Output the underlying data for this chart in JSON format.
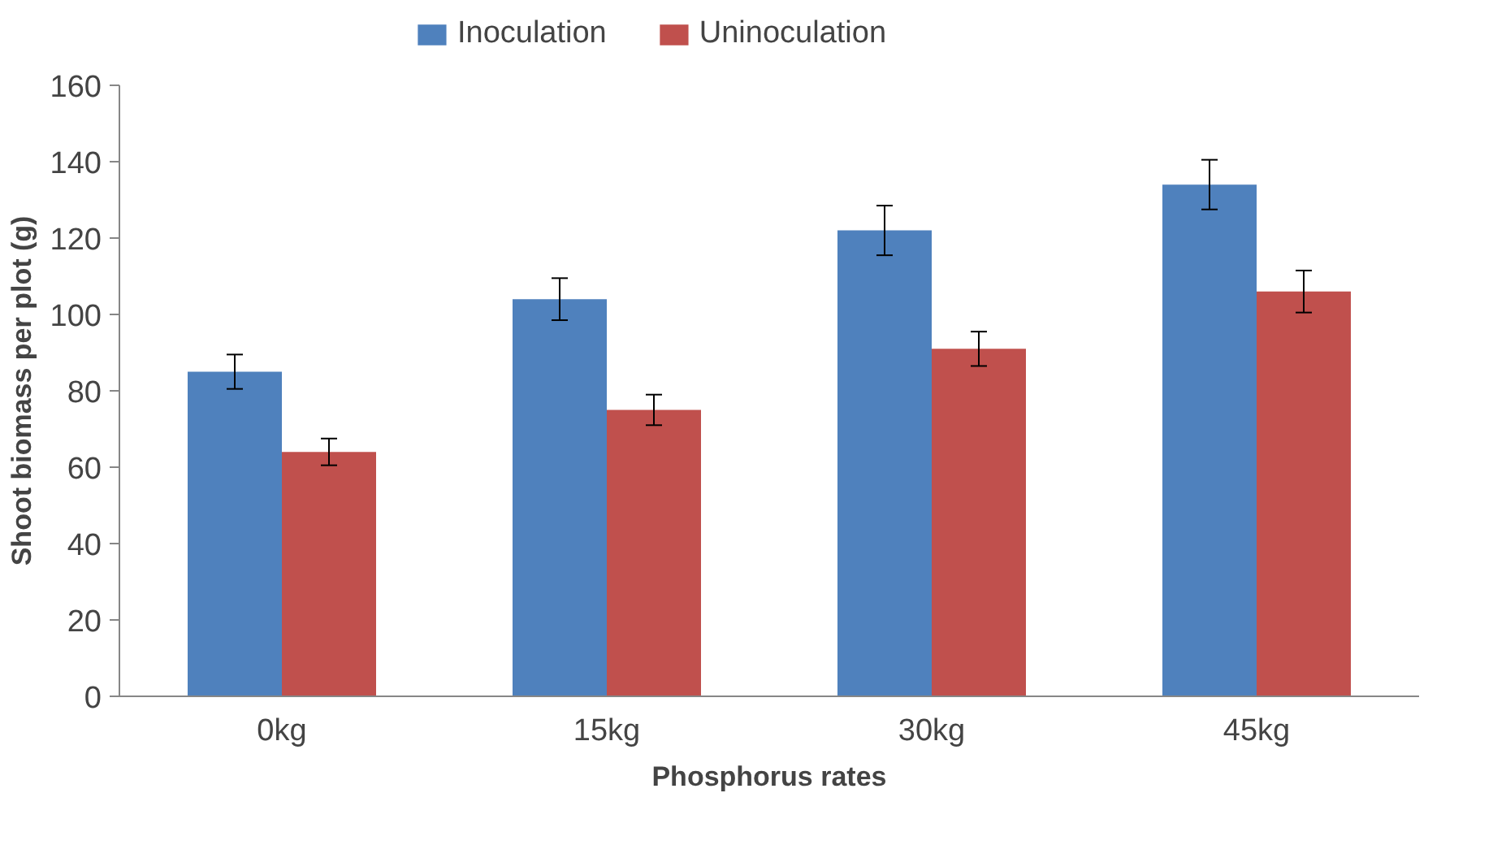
{
  "chart_data": {
    "type": "bar",
    "xlabel": "Phosphorus rates",
    "ylabel": "Shoot biomass per plot (g)",
    "categories": [
      "0kg",
      "15kg",
      "30kg",
      "45kg"
    ],
    "series": [
      {
        "name": "Inoculation",
        "color": "#4f81bd",
        "values": [
          85,
          104,
          122,
          134
        ],
        "errors": [
          4.5,
          5.5,
          6.5,
          6.5
        ]
      },
      {
        "name": "Uninoculation",
        "color": "#c0504d",
        "values": [
          64,
          75,
          91,
          106
        ],
        "errors": [
          3.5,
          4,
          4.5,
          5.5
        ]
      }
    ],
    "ylim": [
      0,
      160
    ],
    "yticks": [
      0,
      20,
      40,
      60,
      80,
      100,
      120,
      140,
      160
    ],
    "grid": false,
    "legend": "top"
  }
}
